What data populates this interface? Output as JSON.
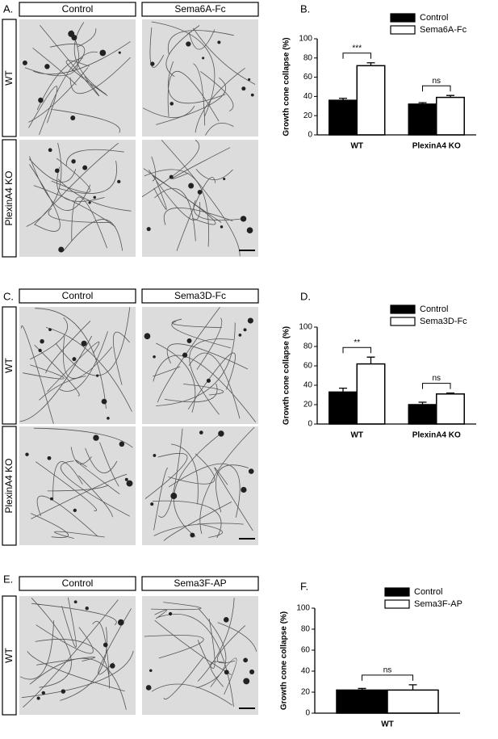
{
  "figure": {
    "panels": [
      {
        "label": "A.",
        "columns": [
          "Control",
          "Sema6A-Fc"
        ],
        "rows": [
          "WT",
          "PlexinA4 KO"
        ]
      },
      {
        "label": "C.",
        "columns": [
          "Control",
          "Sema3D-Fc"
        ],
        "rows": [
          "WT",
          "PlexinA4 KO"
        ]
      },
      {
        "label": "E.",
        "columns": [
          "Control",
          "Sema3F-AP"
        ],
        "rows": [
          "WT"
        ]
      }
    ]
  },
  "chart_data": [
    {
      "type": "bar",
      "panel_label": "B.",
      "ylabel": "Growth cone collapse (%)",
      "categories": [
        "WT",
        "PlexinA4 KO"
      ],
      "series": [
        {
          "name": "Control",
          "color": "#000000",
          "values": [
            36,
            32
          ],
          "errors": [
            2,
            1.5
          ]
        },
        {
          "name": "Sema6A-Fc",
          "color": "#ffffff",
          "values": [
            72,
            39
          ],
          "errors": [
            3,
            2
          ]
        }
      ],
      "ylim": [
        0,
        100
      ],
      "yticks": [
        0,
        20,
        40,
        60,
        80,
        100
      ],
      "annotations": [
        "***",
        "ns"
      ]
    },
    {
      "type": "bar",
      "panel_label": "D.",
      "ylabel": "Growth cone collapse (%)",
      "categories": [
        "WT",
        "PlexinA4 KO"
      ],
      "series": [
        {
          "name": "Control",
          "color": "#000000",
          "values": [
            33,
            20
          ],
          "errors": [
            4,
            2.5
          ]
        },
        {
          "name": "Sema3D-Fc",
          "color": "#ffffff",
          "values": [
            62,
            31
          ],
          "errors": [
            7,
            1
          ]
        }
      ],
      "ylim": [
        0,
        100
      ],
      "yticks": [
        0,
        20,
        40,
        60,
        80,
        100
      ],
      "annotations": [
        "**",
        "ns"
      ]
    },
    {
      "type": "bar",
      "panel_label": "F.",
      "ylabel": "Growth cone collapse (%)",
      "categories": [
        "WT"
      ],
      "series": [
        {
          "name": "Control",
          "color": "#000000",
          "values": [
            22
          ],
          "errors": [
            1.5
          ]
        },
        {
          "name": "Sema3F-AP",
          "color": "#ffffff",
          "values": [
            22
          ],
          "errors": [
            5
          ]
        }
      ],
      "ylim": [
        0,
        100
      ],
      "yticks": [
        0,
        20,
        40,
        60,
        80,
        100
      ],
      "annotations": [
        "ns"
      ]
    }
  ]
}
